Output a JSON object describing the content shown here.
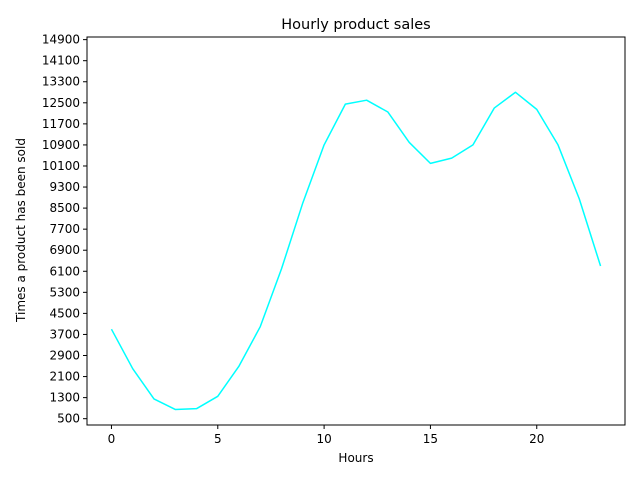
{
  "chart_data": {
    "type": "line",
    "title": "Hourly product sales",
    "xlabel": "Hours",
    "ylabel": "Times a product has been sold",
    "xlim": [
      -1.15,
      24.15
    ],
    "ylim": [
      260,
      15000
    ],
    "x_ticks": [
      0,
      5,
      10,
      15,
      20
    ],
    "y_ticks": [
      500,
      1300,
      2100,
      2900,
      3700,
      4500,
      5300,
      6100,
      6900,
      7700,
      8500,
      9300,
      10100,
      10900,
      11700,
      12500,
      13300,
      14100,
      14900
    ],
    "grid": false,
    "series": [
      {
        "color": "#00ffff",
        "x": [
          0,
          1,
          2,
          3,
          4,
          5,
          6,
          7,
          8,
          9,
          10,
          11,
          12,
          13,
          14,
          15,
          16,
          17,
          18,
          19,
          20,
          21,
          22,
          23
        ],
        "values": [
          3900,
          2400,
          1250,
          850,
          880,
          1350,
          2500,
          4000,
          6200,
          8700,
          10900,
          12450,
          12600,
          12150,
          11000,
          10200,
          10400,
          10900,
          12300,
          12900,
          12250,
          10900,
          8850,
          6300
        ]
      }
    ]
  }
}
